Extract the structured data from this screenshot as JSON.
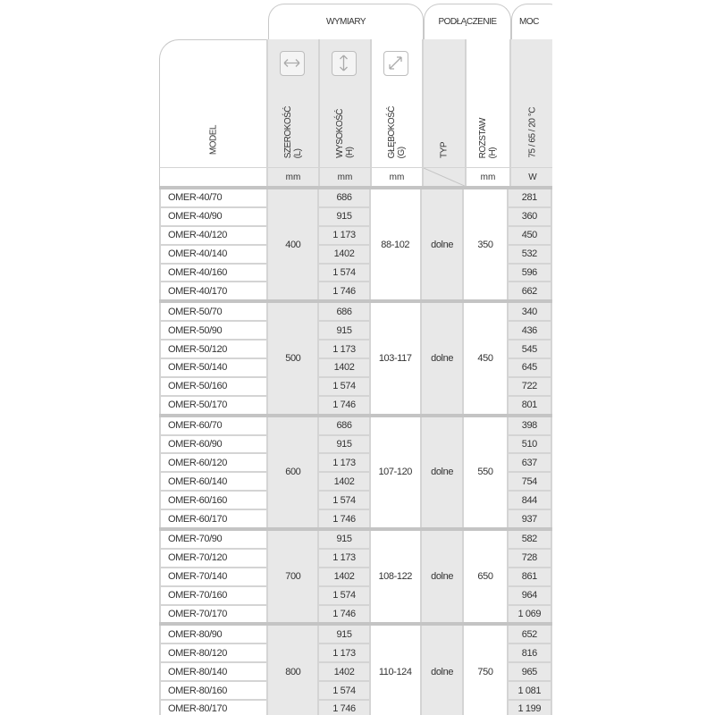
{
  "header": {
    "groups": {
      "dimensions": "WYMIARY",
      "connection": "PODŁĄCZENIE",
      "power": "MOC"
    },
    "model": "MODEL",
    "width": {
      "label": "SZEROKOŚĆ",
      "sym": "(L)",
      "unit": "mm",
      "icon": "horizontal-arrows-icon"
    },
    "height": {
      "label": "WYSOKOŚĆ",
      "sym": "(H)",
      "unit": "mm",
      "icon": "vertical-arrows-icon"
    },
    "depth": {
      "label": "GŁĘBOKOŚĆ",
      "sym": "(G)",
      "unit": "mm",
      "icon": "diagonal-arrows-icon"
    },
    "type": {
      "label": "TYP"
    },
    "spacing": {
      "label": "ROZSTAW",
      "sym": "(H)",
      "unit": "mm"
    },
    "power": {
      "label": "75 / 65 / 20 °C",
      "unit": "W"
    }
  },
  "groups": [
    {
      "width": "400",
      "depth": "88-102",
      "type": "dolne",
      "spacing": "350",
      "rows": [
        {
          "model": "OMER-40/70",
          "height": "686",
          "power": "281"
        },
        {
          "model": "OMER-40/90",
          "height": "915",
          "power": "360"
        },
        {
          "model": "OMER-40/120",
          "height": "1 173",
          "power": "450"
        },
        {
          "model": "OMER-40/140",
          "height": "1402",
          "power": "532"
        },
        {
          "model": "OMER-40/160",
          "height": "1 574",
          "power": "596"
        },
        {
          "model": "OMER-40/170",
          "height": "1 746",
          "power": "662"
        }
      ]
    },
    {
      "width": "500",
      "depth": "103-117",
      "type": "dolne",
      "spacing": "450",
      "rows": [
        {
          "model": "OMER-50/70",
          "height": "686",
          "power": "340"
        },
        {
          "model": "OMER-50/90",
          "height": "915",
          "power": "436"
        },
        {
          "model": "OMER-50/120",
          "height": "1 173",
          "power": "545"
        },
        {
          "model": "OMER-50/140",
          "height": "1402",
          "power": "645"
        },
        {
          "model": "OMER-50/160",
          "height": "1 574",
          "power": "722"
        },
        {
          "model": "OMER-50/170",
          "height": "1 746",
          "power": "801"
        }
      ]
    },
    {
      "width": "600",
      "depth": "107-120",
      "type": "dolne",
      "spacing": "550",
      "rows": [
        {
          "model": "OMER-60/70",
          "height": "686",
          "power": "398"
        },
        {
          "model": "OMER-60/90",
          "height": "915",
          "power": "510"
        },
        {
          "model": "OMER-60/120",
          "height": "1 173",
          "power": "637"
        },
        {
          "model": "OMER-60/140",
          "height": "1402",
          "power": "754"
        },
        {
          "model": "OMER-60/160",
          "height": "1 574",
          "power": "844"
        },
        {
          "model": "OMER-60/170",
          "height": "1 746",
          "power": "937"
        }
      ]
    },
    {
      "width": "700",
      "depth": "108-122",
      "type": "dolne",
      "spacing": "650",
      "rows": [
        {
          "model": "OMER-70/90",
          "height": "915",
          "power": "582"
        },
        {
          "model": "OMER-70/120",
          "height": "1 173",
          "power": "728"
        },
        {
          "model": "OMER-70/140",
          "height": "1402",
          "power": "861"
        },
        {
          "model": "OMER-70/160",
          "height": "1 574",
          "power": "964"
        },
        {
          "model": "OMER-70/170",
          "height": "1 746",
          "power": "1 069"
        }
      ]
    },
    {
      "width": "800",
      "depth": "110-124",
      "type": "dolne",
      "spacing": "750",
      "rows": [
        {
          "model": "OMER-80/90",
          "height": "915",
          "power": "652"
        },
        {
          "model": "OMER-80/120",
          "height": "1 173",
          "power": "816"
        },
        {
          "model": "OMER-80/140",
          "height": "1402",
          "power": "965"
        },
        {
          "model": "OMER-80/160",
          "height": "1 574",
          "power": "1 081"
        },
        {
          "model": "OMER-80/170",
          "height": "1 746",
          "power": "1 199"
        }
      ]
    }
  ]
}
